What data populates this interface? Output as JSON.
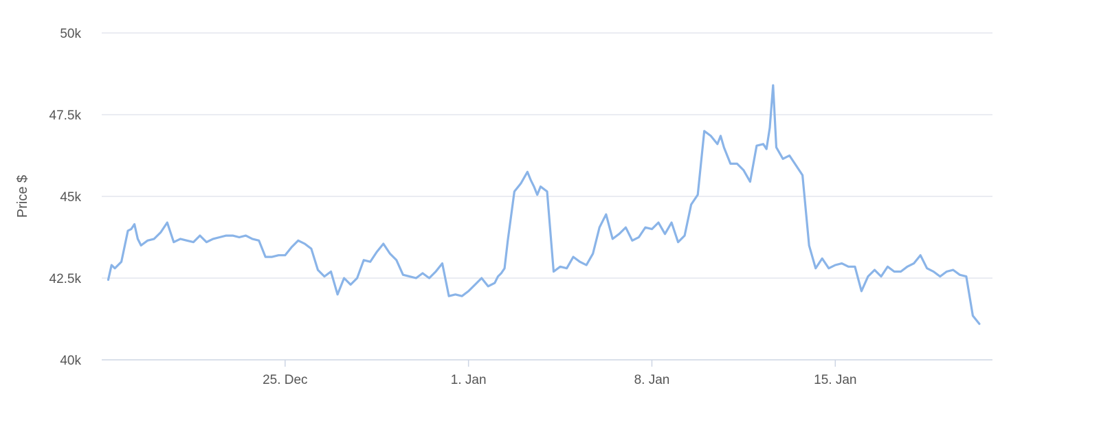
{
  "chart_data": {
    "type": "line",
    "title": "",
    "xlabel": "",
    "ylabel": "Price $",
    "ylim": [
      40000,
      50000
    ],
    "y_ticks": [
      {
        "value": 40000,
        "label": "40k"
      },
      {
        "value": 42500,
        "label": "42.5k"
      },
      {
        "value": 45000,
        "label": "45k"
      },
      {
        "value": 47500,
        "label": "47.5k"
      },
      {
        "value": 50000,
        "label": "50k"
      }
    ],
    "x_range": [
      "2023-12-18T00:00",
      "2024-01-21T00:00"
    ],
    "x_ticks": [
      {
        "value": "2023-12-25",
        "label": "25. Dec"
      },
      {
        "value": "2024-01-01",
        "label": "1. Jan"
      },
      {
        "value": "2024-01-08",
        "label": "8. Jan"
      },
      {
        "value": "2024-01-15",
        "label": "15. Jan"
      }
    ],
    "grid": true,
    "legend": "none",
    "colors": {
      "series": "#8ab4e8",
      "grid": "#e3e6ee",
      "axis": "#cdd5e4",
      "text": "#555555"
    },
    "series": [
      {
        "x": [
          "2023-12-18T06:00",
          "2023-12-18T09:00",
          "2023-12-18T12:00",
          "2023-12-18T18:00",
          "2023-12-19T00:00",
          "2023-12-19T03:00",
          "2023-12-19T06:00",
          "2023-12-19T09:00",
          "2023-12-19T12:00",
          "2023-12-19T18:00",
          "2023-12-20T00:00",
          "2023-12-20T06:00",
          "2023-12-20T12:00",
          "2023-12-20T18:00",
          "2023-12-21T00:00",
          "2023-12-21T06:00",
          "2023-12-21T12:00",
          "2023-12-21T18:00",
          "2023-12-22T00:00",
          "2023-12-22T06:00",
          "2023-12-22T12:00",
          "2023-12-22T18:00",
          "2023-12-23T00:00",
          "2023-12-23T06:00",
          "2023-12-23T12:00",
          "2023-12-23T18:00",
          "2023-12-24T00:00",
          "2023-12-24T06:00",
          "2023-12-24T12:00",
          "2023-12-24T18:00",
          "2023-12-25T00:00",
          "2023-12-25T06:00",
          "2023-12-25T12:00",
          "2023-12-25T18:00",
          "2023-12-26T00:00",
          "2023-12-26T06:00",
          "2023-12-26T12:00",
          "2023-12-26T18:00",
          "2023-12-27T00:00",
          "2023-12-27T06:00",
          "2023-12-27T12:00",
          "2023-12-27T18:00",
          "2023-12-28T00:00",
          "2023-12-28T06:00",
          "2023-12-28T12:00",
          "2023-12-28T18:00",
          "2023-12-29T00:00",
          "2023-12-29T06:00",
          "2023-12-29T12:00",
          "2023-12-29T18:00",
          "2023-12-30T00:00",
          "2023-12-30T06:00",
          "2023-12-30T12:00",
          "2023-12-30T18:00",
          "2023-12-31T00:00",
          "2023-12-31T06:00",
          "2023-12-31T12:00",
          "2023-12-31T18:00",
          "2024-01-01T00:00",
          "2024-01-01T06:00",
          "2024-01-01T12:00",
          "2024-01-01T18:00",
          "2024-01-02T00:00",
          "2024-01-02T03:00",
          "2024-01-02T06:00",
          "2024-01-02T09:00",
          "2024-01-02T12:00",
          "2024-01-02T18:00",
          "2024-01-03T00:00",
          "2024-01-03T06:00",
          "2024-01-03T09:00",
          "2024-01-03T12:00",
          "2024-01-03T15:00",
          "2024-01-03T18:00",
          "2024-01-04T00:00",
          "2024-01-04T06:00",
          "2024-01-04T12:00",
          "2024-01-04T18:00",
          "2024-01-05T00:00",
          "2024-01-05T06:00",
          "2024-01-05T12:00",
          "2024-01-05T18:00",
          "2024-01-06T00:00",
          "2024-01-06T06:00",
          "2024-01-06T12:00",
          "2024-01-06T18:00",
          "2024-01-07T00:00",
          "2024-01-07T06:00",
          "2024-01-07T12:00",
          "2024-01-07T18:00",
          "2024-01-08T00:00",
          "2024-01-08T06:00",
          "2024-01-08T12:00",
          "2024-01-08T18:00",
          "2024-01-09T00:00",
          "2024-01-09T06:00",
          "2024-01-09T12:00",
          "2024-01-09T18:00",
          "2024-01-10T00:00",
          "2024-01-10T06:00",
          "2024-01-10T12:00",
          "2024-01-10T15:00",
          "2024-01-10T18:00",
          "2024-01-11T00:00",
          "2024-01-11T06:00",
          "2024-01-11T12:00",
          "2024-01-11T18:00",
          "2024-01-12T00:00",
          "2024-01-12T06:00",
          "2024-01-12T09:00",
          "2024-01-12T12:00",
          "2024-01-12T15:00",
          "2024-01-12T18:00",
          "2024-01-13T00:00",
          "2024-01-13T06:00",
          "2024-01-13T12:00",
          "2024-01-13T18:00",
          "2024-01-14T00:00",
          "2024-01-14T06:00",
          "2024-01-14T12:00",
          "2024-01-14T18:00",
          "2024-01-15T00:00",
          "2024-01-15T06:00",
          "2024-01-15T12:00",
          "2024-01-15T18:00",
          "2024-01-16T00:00",
          "2024-01-16T06:00",
          "2024-01-16T12:00",
          "2024-01-16T18:00",
          "2024-01-17T00:00",
          "2024-01-17T06:00",
          "2024-01-17T12:00",
          "2024-01-17T18:00",
          "2024-01-18T00:00",
          "2024-01-18T06:00",
          "2024-01-18T12:00",
          "2024-01-18T18:00",
          "2024-01-19T00:00",
          "2024-01-19T06:00",
          "2024-01-19T12:00",
          "2024-01-19T18:00",
          "2024-01-20T00:00",
          "2024-01-20T06:00",
          "2024-01-20T12:00"
        ],
        "values": [
          42450,
          42900,
          42800,
          43000,
          43950,
          44000,
          44150,
          43700,
          43500,
          43650,
          43700,
          43900,
          44200,
          43600,
          43700,
          43650,
          43600,
          43800,
          43600,
          43700,
          43750,
          43800,
          43800,
          43750,
          43800,
          43700,
          43650,
          43150,
          43150,
          43200,
          43200,
          43450,
          43650,
          43550,
          43400,
          42750,
          42550,
          42700,
          42000,
          42500,
          42300,
          42500,
          43050,
          43000,
          43300,
          43550,
          43250,
          43050,
          42600,
          42550,
          42500,
          42650,
          42500,
          42700,
          42950,
          41950,
          42000,
          41950,
          42100,
          42300,
          42500,
          42250,
          42350,
          42550,
          42650,
          42800,
          43650,
          45150,
          45400,
          45750,
          45500,
          45300,
          45050,
          45300,
          45150,
          42700,
          42850,
          42800,
          43150,
          43000,
          42900,
          43250,
          44050,
          44450,
          43700,
          43850,
          44050,
          43650,
          43750,
          44050,
          44000,
          44200,
          43850,
          44200,
          43600,
          43800,
          44750,
          45050,
          47000,
          46850,
          46600,
          46850,
          46500,
          46000,
          46000,
          45800,
          45450,
          46550,
          46600,
          46450,
          47100,
          48400,
          46500,
          46150,
          46250,
          45950,
          45650,
          43500,
          42800,
          43100,
          42800,
          42900,
          42950,
          42850,
          42850,
          42100,
          42550,
          42750,
          42550,
          42850,
          42700,
          42700,
          42850,
          42950,
          43200,
          42800,
          42700,
          42550,
          42700,
          42750,
          42600,
          42550,
          41350,
          41100
        ]
      }
    ]
  }
}
